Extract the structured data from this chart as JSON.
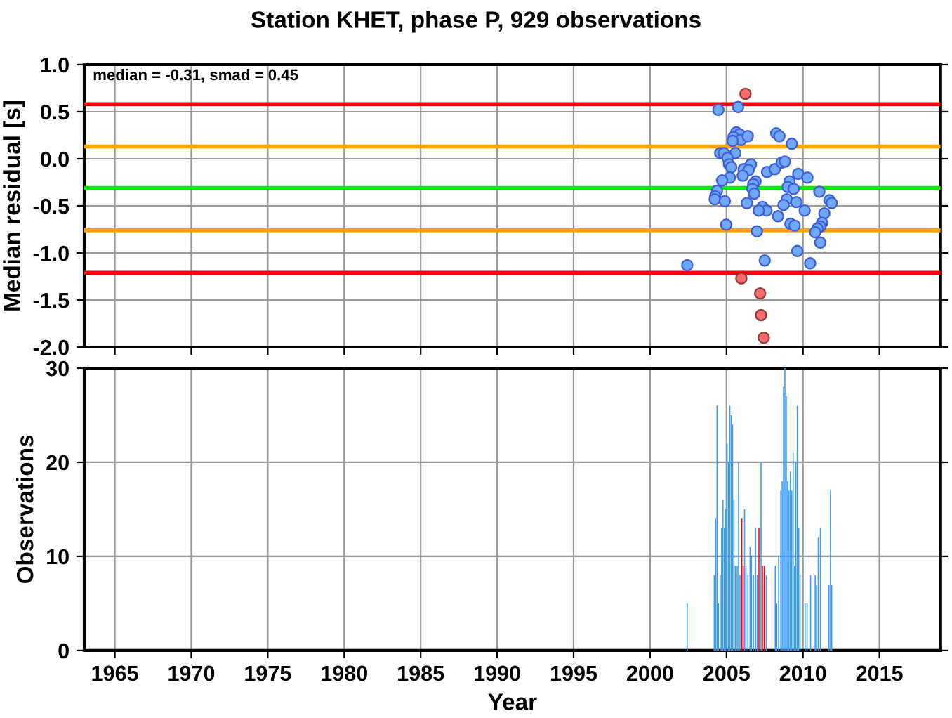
{
  "chart_data": [
    {
      "type": "scatter",
      "title": "Station KHET, phase P, 929 observations",
      "ylabel": "Median residual [s]",
      "annotations": [
        "median = -0.31, smad = 0.45"
      ],
      "xlim": [
        1963,
        2019
      ],
      "xticks": [
        1965,
        1970,
        1975,
        1980,
        1985,
        1990,
        1995,
        2000,
        2005,
        2010,
        2015
      ],
      "ylim": [
        -2.0,
        1.0
      ],
      "yticks": [
        {
          "value": -2.0,
          "label": "-2.0"
        },
        {
          "value": -1.5,
          "label": "-1.5"
        },
        {
          "value": -1.0,
          "label": "-1.0"
        },
        {
          "value": -0.5,
          "label": "-0.5"
        },
        {
          "value": 0.0,
          "label": "0.0"
        },
        {
          "value": 0.5,
          "label": "0.5"
        },
        {
          "value": 1.0,
          "label": "1.0"
        }
      ],
      "tick_labels": "y",
      "grid": true,
      "marker": "circle",
      "ref_lines": [
        {
          "axis": "y",
          "value": 0.58,
          "color": "#ff0000"
        },
        {
          "axis": "y",
          "value": 0.13,
          "color": "#ffa500"
        },
        {
          "axis": "y",
          "value": -0.31,
          "color": "#00ee00"
        },
        {
          "axis": "y",
          "value": -0.76,
          "color": "#ffa500"
        },
        {
          "axis": "y",
          "value": -1.21,
          "color": "#ff0000"
        }
      ],
      "series": [
        {
          "color": "#6fa8f5",
          "x": [
            2002.43,
            2004.47,
            2005.76,
            2005.64,
            2005.85,
            2005.46,
            2005.94,
            2006.39,
            2005.4,
            2008.25,
            2008.46,
            2009.27,
            2004.59,
            2004.83,
            2005.58,
            2005.07,
            2005.16,
            2005.31,
            2006.12,
            2006.6,
            2006.45,
            2006.06,
            2005.22,
            2004.71,
            2007.65,
            2008.16,
            2008.61,
            2008.82,
            2009.69,
            2010.29,
            2009.12,
            2006.9,
            2006.75,
            2009.0,
            2009.39,
            2006.69,
            2004.38,
            2006.81,
            2004.26,
            2004.23,
            2004.89,
            2008.94,
            2008.73,
            2009.57,
            2011.07,
            2006.33,
            2011.73,
            2011.88,
            2007.35,
            2007.62,
            2007.11,
            2010.11,
            2008.37,
            2011.4,
            2011.25,
            2011.13,
            2010.95,
            2010.8,
            2009.18,
            2009.45,
            2004.98,
            2006.99,
            2011.13,
            2009.63,
            2007.5,
            2010.47
          ],
          "values": [
            -1.13,
            0.52,
            0.55,
            0.28,
            0.26,
            0.23,
            0.2,
            0.24,
            0.19,
            0.27,
            0.24,
            0.16,
            0.06,
            0.06,
            0.06,
            0.01,
            -0.06,
            -0.09,
            -0.11,
            -0.06,
            -0.12,
            -0.18,
            -0.2,
            -0.23,
            -0.14,
            -0.11,
            -0.04,
            -0.03,
            -0.16,
            -0.2,
            -0.24,
            -0.24,
            -0.27,
            -0.3,
            -0.32,
            -0.32,
            -0.34,
            -0.37,
            -0.4,
            -0.43,
            -0.45,
            -0.43,
            -0.49,
            -0.46,
            -0.35,
            -0.47,
            -0.44,
            -0.47,
            -0.51,
            -0.55,
            -0.55,
            -0.55,
            -0.61,
            -0.58,
            -0.68,
            -0.72,
            -0.74,
            -0.78,
            -0.69,
            -0.71,
            -0.7,
            -0.77,
            -0.89,
            -0.98,
            -1.08,
            -1.11
          ]
        },
        {
          "color": "#ff6b6b",
          "x": [
            2006.24,
            2005.97,
            2007.2,
            2007.26,
            2007.44
          ],
          "values": [
            0.69,
            -1.27,
            -1.43,
            -1.66,
            -1.9
          ]
        }
      ]
    },
    {
      "type": "bar",
      "xlabel": "Year",
      "ylabel": "Observations",
      "xlim": [
        1963,
        2019
      ],
      "xticks": [
        1965,
        1970,
        1975,
        1980,
        1985,
        1990,
        1995,
        2000,
        2005,
        2010,
        2015
      ],
      "ylim": [
        0,
        30
      ],
      "yticks": [
        0,
        10,
        20,
        30
      ],
      "grid": true,
      "series": [
        {
          "color": "#3399ff",
          "x": [
            2002.43,
            2004.2,
            2004.29,
            2004.38,
            2004.47,
            2004.59,
            2004.68,
            2004.77,
            2004.86,
            2004.95,
            2005.04,
            2005.13,
            2005.22,
            2005.31,
            2005.4,
            2005.49,
            2005.58,
            2005.7,
            2005.79,
            2005.88,
            2006.18,
            2006.27,
            2006.4,
            2006.54,
            2006.63,
            2006.76,
            2006.9,
            2007.01,
            2007.26,
            2007.6,
            2008.19,
            2008.28,
            2008.41,
            2008.55,
            2008.64,
            2008.73,
            2008.82,
            2008.91,
            2009.0,
            2009.09,
            2009.18,
            2009.27,
            2009.36,
            2009.45,
            2009.54,
            2009.63,
            2009.72,
            2009.81,
            2010.14,
            2010.27,
            2010.5,
            2010.8,
            2010.89,
            2011.0,
            2011.14,
            2011.7,
            2011.8,
            2011.88
          ],
          "values": [
            5,
            8,
            14,
            26,
            5,
            8,
            13,
            16,
            13,
            15,
            22,
            20,
            26,
            25,
            24,
            16,
            9,
            9,
            20,
            8,
            15,
            9,
            8,
            11,
            10,
            8,
            13,
            8,
            20,
            8,
            9,
            5,
            10,
            17,
            18,
            28,
            30,
            27,
            18,
            17,
            19,
            17,
            21,
            9,
            20,
            26,
            13,
            8,
            5,
            5,
            8,
            8,
            7,
            12,
            13,
            7,
            17,
            7
          ]
        },
        {
          "color": "#ff0000",
          "x": [
            2006.0,
            2006.09,
            2007.12,
            2007.35,
            2007.47
          ],
          "values": [
            14,
            9,
            13,
            9,
            9
          ]
        }
      ]
    }
  ]
}
